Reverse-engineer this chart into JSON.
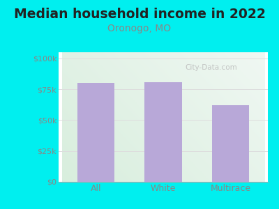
{
  "title": "Median household income in 2022",
  "subtitle": "Oronogo, MO",
  "categories": [
    "All",
    "White",
    "Multirace"
  ],
  "values": [
    80000,
    81000,
    62000
  ],
  "bar_color": "#b8a8d8",
  "background_color": "#00EFEF",
  "title_fontsize": 13.5,
  "title_color": "#222222",
  "subtitle_fontsize": 10,
  "subtitle_color": "#888888",
  "tick_color": "#888888",
  "tick_fontsize": 8,
  "xtick_fontsize": 9,
  "ylabel_ticks": [
    0,
    25000,
    50000,
    75000,
    100000
  ],
  "ylabel_labels": [
    "$0",
    "$25k",
    "$50k",
    "$75k",
    "$100k"
  ],
  "ylim": [
    0,
    105000
  ],
  "watermark": "City-Data.com",
  "grid_color": "#dddddd",
  "plot_bg_left": "#d8eedc",
  "plot_bg_right": "#f0f8f8",
  "cyan_bg": "#00EFEF"
}
